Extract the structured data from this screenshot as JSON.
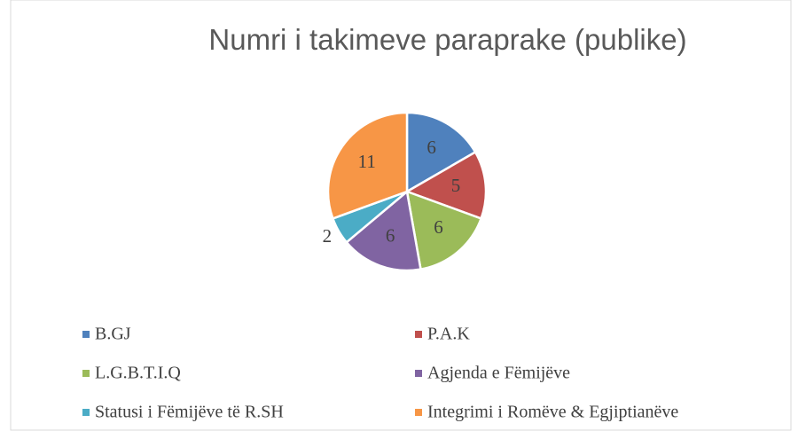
{
  "chart_data": {
    "type": "pie",
    "title": "Numri i takimeve paraprake (publike)",
    "categories": [
      "B.GJ",
      "P.A.K",
      "L.G.B.T.I.Q",
      "Agjenda e Fëmijëve",
      "Statusi i Fëmijëve të R.SH",
      "Integrimi i Romëve & Egjiptianëve"
    ],
    "values": [
      6,
      5,
      6,
      6,
      2,
      11
    ],
    "colors": [
      "#4f81bd",
      "#c0504d",
      "#9bbb59",
      "#8064a2",
      "#4bacc6",
      "#f79646"
    ],
    "legend": "bottom"
  }
}
